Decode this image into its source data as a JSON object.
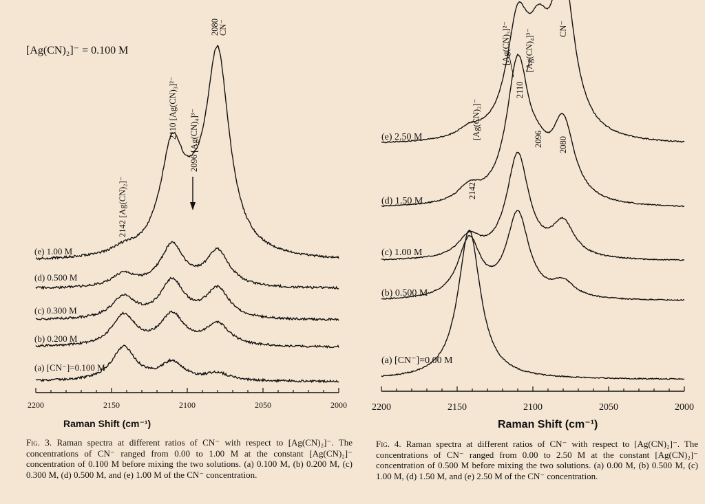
{
  "background_color": "#f5e6d3",
  "chart_data": [
    {
      "type": "line",
      "figure_label": "Fig. 3.",
      "caption": "Raman spectra at different ratios of CN⁻ with respect to [Ag(CN)₂]⁻. The concentrations of CN⁻ ranged from 0.00 to 1.00 M at the constant [Ag(CN)₂]⁻ concentration of 0.100 M before mixing the two solutions. (a) 0.100 M, (b) 0.200 M, (c) 0.300 M, (d) 0.500 M, and (e) 1.00 M of the CN⁻ concentration.",
      "xlabel": "Raman Shift (cm⁻¹)",
      "ylabel": "",
      "xlim": [
        2200,
        2000
      ],
      "x_ticks": [
        "2200",
        "2150",
        "2100",
        "2050",
        "2000"
      ],
      "grid": false,
      "annotations": {
        "header": "[Ag(CN)₂]⁻ = 0.100 M",
        "peak_2142": "2142 [Ag(CN)₂]⁻",
        "peak_2110": "2110 [Ag(CN)₃]²⁻",
        "peak_2096": "2096 [Ag(CN)₄]³⁻",
        "peak_2080_value": "2080",
        "peak_2080_species": "CN⁻"
      },
      "series": [
        {
          "name": "(a) [CN⁻]=0.100 M",
          "peaks": [
            {
              "x": 2142,
              "height": 0.85
            },
            {
              "x": 2110,
              "height": 0.45
            },
            {
              "x": 2080,
              "height": 0.18
            }
          ]
        },
        {
          "name": "(b) 0.200 M",
          "peaks": [
            {
              "x": 2142,
              "height": 0.78
            },
            {
              "x": 2110,
              "height": 0.78
            },
            {
              "x": 2080,
              "height": 0.55
            }
          ]
        },
        {
          "name": "(c) 0.300 M",
          "peaks": [
            {
              "x": 2142,
              "height": 0.55
            },
            {
              "x": 2110,
              "height": 0.95
            },
            {
              "x": 2080,
              "height": 0.75
            }
          ]
        },
        {
          "name": "(d) 0.500 M",
          "peaks": [
            {
              "x": 2142,
              "height": 0.32
            },
            {
              "x": 2110,
              "height": 1.05
            },
            {
              "x": 2080,
              "height": 0.9
            }
          ]
        },
        {
          "name": "(e) 1.00 M",
          "peaks": [
            {
              "x": 2142,
              "height": 0.15
            },
            {
              "x": 2110,
              "height": 2.55
            },
            {
              "x": 2096,
              "height": 0.6
            },
            {
              "x": 2080,
              "height": 5.0
            }
          ]
        }
      ]
    },
    {
      "type": "line",
      "figure_label": "Fig. 4.",
      "caption": "Raman spectra at different ratios of CN⁻ with respect to [Ag(CN)₂]⁻. The concentrations of CN⁻ ranged from 0.00 to 2.50 M at the constant [Ag(CN)₂]⁻ concentration of 0.500 M before mixing the two solutions. (a) 0.00 M, (b) 0.500 M, (c) 1.00 M, (d) 1.50 M, and (e) 2.50 M of the CN⁻ concentration.",
      "xlabel": "Raman Shift (cm⁻¹)",
      "ylabel": "",
      "xlim": [
        2200,
        2000
      ],
      "x_ticks": [
        "2200",
        "2150",
        "2100",
        "2050",
        "2000"
      ],
      "grid": false,
      "annotations": {
        "peak_2142_d": "2142",
        "peak_2110_e": "2110",
        "peak_2096_e": "2096",
        "peak_2080_e": "2080",
        "top_ag2": "[Ag(CN)₂]⁻",
        "top_ag3": "[Ag(CN)₃]²⁻",
        "top_ag4": "[Ag(CN)₄]³⁻",
        "top_cn": "CN⁻"
      },
      "series": [
        {
          "name": "(a) [CN⁻]=0.00 M",
          "peaks": [
            {
              "x": 2142,
              "height": 3.5
            }
          ]
        },
        {
          "name": "(b) 0.500 M",
          "peaks": [
            {
              "x": 2142,
              "height": 1.38
            },
            {
              "x": 2110,
              "height": 2.0
            },
            {
              "x": 2080,
              "height": 0.35
            }
          ]
        },
        {
          "name": "(c) 1.00 M",
          "peaks": [
            {
              "x": 2142,
              "height": 0.5
            },
            {
              "x": 2110,
              "height": 2.45
            },
            {
              "x": 2080,
              "height": 0.8
            }
          ]
        },
        {
          "name": "(d) 1.50 M",
          "peaks": [
            {
              "x": 2142,
              "height": 0.35
            },
            {
              "x": 2110,
              "height": 3.25
            },
            {
              "x": 2096,
              "height": 0.6
            },
            {
              "x": 2080,
              "height": 1.8
            }
          ]
        },
        {
          "name": "(e) 2.50 M",
          "peaks": [
            {
              "x": 2142,
              "height": 0.2
            },
            {
              "x": 2110,
              "height": 2.5
            },
            {
              "x": 2096,
              "height": 1.7
            },
            {
              "x": 2080,
              "height": 3.6
            }
          ]
        }
      ]
    }
  ]
}
